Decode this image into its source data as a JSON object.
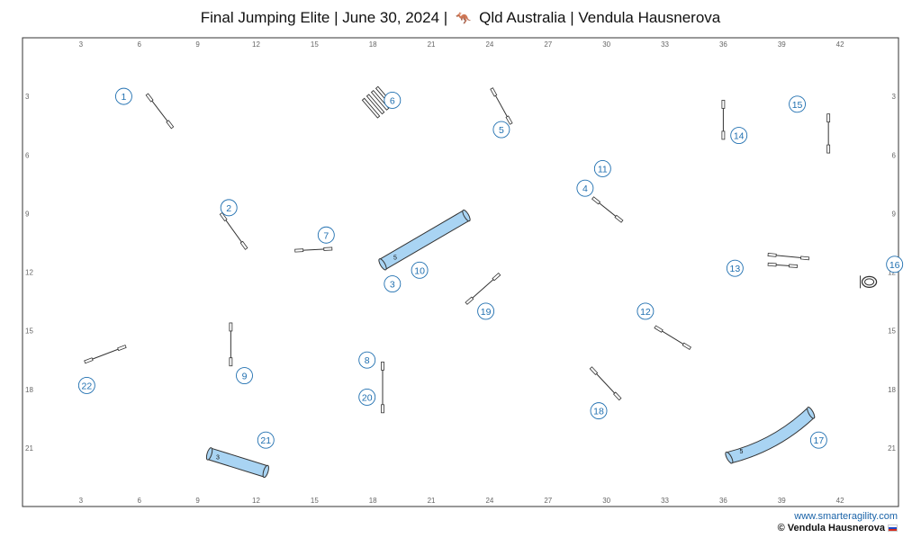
{
  "header": {
    "event": "Final Jumping Elite",
    "sep1": "|",
    "date": "June 30, 2024",
    "sep2": "|",
    "flag_icon": "kangaroo-icon",
    "location": "Qld Australia",
    "sep3": "|",
    "author": "Vendula Hausnerova"
  },
  "field": {
    "width_m": 45,
    "height_m": 24,
    "x_ticks": [
      "3",
      "6",
      "9",
      "12",
      "15",
      "18",
      "21",
      "24",
      "27",
      "30",
      "33",
      "36",
      "39",
      "42"
    ],
    "y_ticks": [
      "3",
      "6",
      "9",
      "12",
      "15",
      "18",
      "21"
    ],
    "colors": {
      "tunnel": "#a9d4f3",
      "marker": "#1f6fb0",
      "obstacle": "#333333"
    }
  },
  "obstacles": {
    "jumps": [
      {
        "x1": 6.4,
        "y1": 2.9,
        "x2": 7.7,
        "y2": 4.6
      },
      {
        "x1": 10.2,
        "y1": 9.0,
        "x2": 11.5,
        "y2": 10.8
      },
      {
        "x1": 14.0,
        "y1": 10.9,
        "x2": 15.9,
        "y2": 10.8
      },
      {
        "x1": 29.3,
        "y1": 8.2,
        "x2": 30.8,
        "y2": 9.4
      },
      {
        "x1": 24.1,
        "y1": 2.6,
        "x2": 25.1,
        "y2": 4.4
      },
      {
        "x1": 10.7,
        "y1": 14.6,
        "x2": 10.7,
        "y2": 16.8
      },
      {
        "x1": 18.5,
        "y1": 16.6,
        "x2": 18.5,
        "y2": 19.2
      },
      {
        "x1": 36.0,
        "y1": 3.2,
        "x2": 36.0,
        "y2": 5.2
      },
      {
        "x1": 38.3,
        "y1": 11.1,
        "x2": 40.4,
        "y2": 11.3
      },
      {
        "x1": 38.3,
        "y1": 11.6,
        "x2": 39.8,
        "y2": 11.7
      },
      {
        "x1": 32.5,
        "y1": 14.8,
        "x2": 34.3,
        "y2": 15.9
      },
      {
        "x1": 41.4,
        "y1": 3.9,
        "x2": 41.4,
        "y2": 5.9
      },
      {
        "x1": 29.2,
        "y1": 16.9,
        "x2": 30.7,
        "y2": 18.5
      },
      {
        "x1": 22.8,
        "y1": 13.6,
        "x2": 24.5,
        "y2": 12.1
      },
      {
        "x1": 3.2,
        "y1": 16.6,
        "x2": 5.3,
        "y2": 15.8
      }
    ],
    "tunnels": [
      {
        "kind": "straight",
        "label": "5",
        "x1": 18.5,
        "y1": 11.6,
        "x2": 22.8,
        "y2": 9.1
      },
      {
        "kind": "straight",
        "label": "3",
        "x1": 9.6,
        "y1": 21.3,
        "x2": 12.5,
        "y2": 22.2
      },
      {
        "kind": "curved",
        "label": "5",
        "x1": 36.3,
        "y1": 21.5,
        "cx": 38.7,
        "cy": 20.9,
        "x2": 40.5,
        "y2": 19.2
      }
    ],
    "weaves": {
      "x1": 17.9,
      "y1": 3.6,
      "x2": 18.6,
      "y2": 3.0,
      "poles": 4
    },
    "tire": {
      "x": 43.5,
      "y": 12.5
    }
  },
  "markers": [
    {
      "n": "1",
      "x": 5.2,
      "y": 3.0
    },
    {
      "n": "2",
      "x": 10.6,
      "y": 8.7
    },
    {
      "n": "3",
      "x": 19.0,
      "y": 12.6
    },
    {
      "n": "4",
      "x": 28.9,
      "y": 7.7
    },
    {
      "n": "5",
      "x": 24.6,
      "y": 4.7
    },
    {
      "n": "6",
      "x": 19.0,
      "y": 3.2
    },
    {
      "n": "7",
      "x": 15.6,
      "y": 10.1
    },
    {
      "n": "8",
      "x": 17.7,
      "y": 16.5
    },
    {
      "n": "9",
      "x": 11.4,
      "y": 17.3
    },
    {
      "n": "10",
      "x": 20.4,
      "y": 11.9
    },
    {
      "n": "11",
      "x": 29.8,
      "y": 6.7
    },
    {
      "n": "12",
      "x": 32.0,
      "y": 14.0
    },
    {
      "n": "13",
      "x": 36.6,
      "y": 11.8
    },
    {
      "n": "14",
      "x": 36.8,
      "y": 5.0
    },
    {
      "n": "15",
      "x": 39.8,
      "y": 3.4
    },
    {
      "n": "16",
      "x": 44.8,
      "y": 11.6
    },
    {
      "n": "17",
      "x": 40.9,
      "y": 20.6
    },
    {
      "n": "18",
      "x": 29.6,
      "y": 19.1
    },
    {
      "n": "19",
      "x": 23.8,
      "y": 14.0
    },
    {
      "n": "20",
      "x": 17.7,
      "y": 18.4
    },
    {
      "n": "21",
      "x": 12.5,
      "y": 20.6
    },
    {
      "n": "22",
      "x": 3.3,
      "y": 17.8
    }
  ],
  "footer": {
    "website": "www.smarteragility.com",
    "copyright": "© Vendula Hausnerova",
    "flag_icon": "russia-flag-icon"
  }
}
